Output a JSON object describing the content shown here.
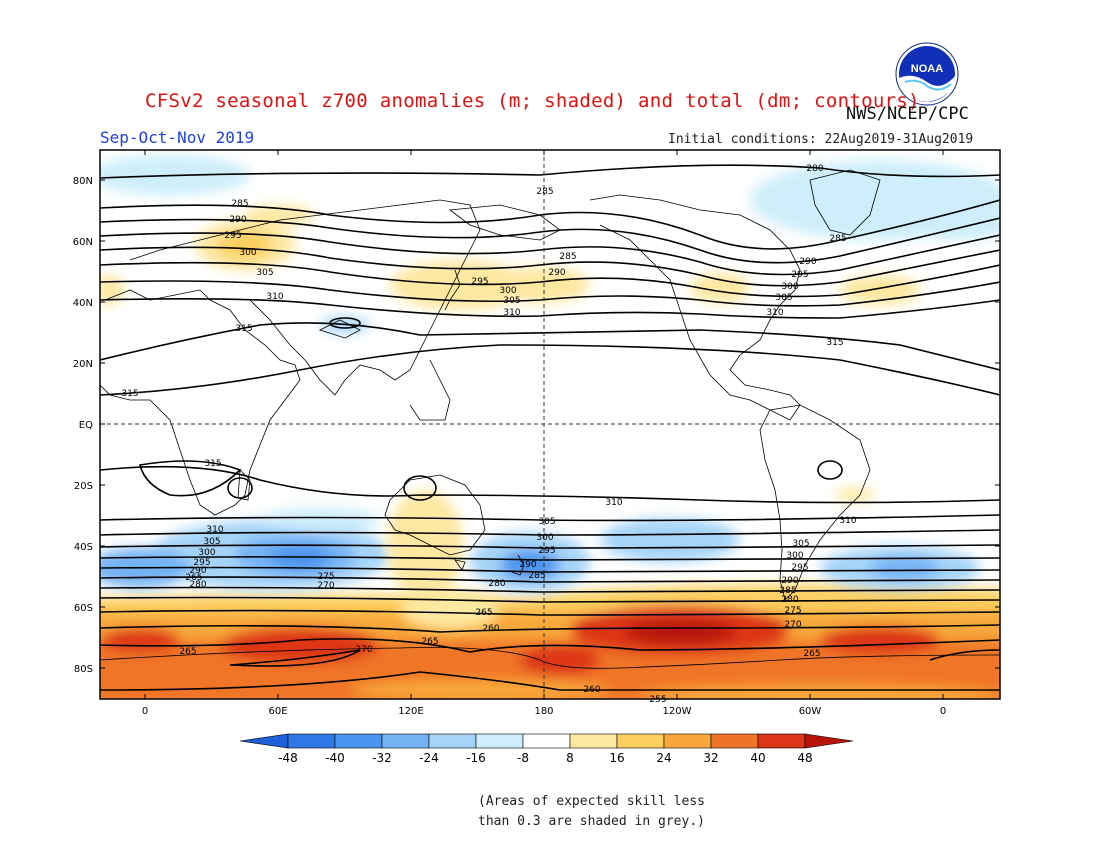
{
  "title": "CFSv2 seasonal z700 anomalies (m; shaded) and total (dm; contours)",
  "agency": "NWS/NCEP/CPC",
  "season": "Sep-Oct-Nov 2019",
  "initial_conditions": "Initial conditions: 22Aug2019-31Aug2019",
  "logo_text": "NOAA",
  "lat_labels": [
    "80N",
    "60N",
    "40N",
    "20N",
    "EQ",
    "20S",
    "40S",
    "60S",
    "80S"
  ],
  "lon_labels": [
    "0",
    "60E",
    "120E",
    "180",
    "120W",
    "60W",
    "0"
  ],
  "colorbar": {
    "ticks": [
      "-48",
      "-40",
      "-32",
      "-24",
      "-16",
      "-8",
      "8",
      "16",
      "24",
      "32",
      "40",
      "48"
    ],
    "colors": [
      "#1c5fd8",
      "#2f78e6",
      "#4b94ee",
      "#74b2f4",
      "#a5d4f8",
      "#cdeefa",
      "#ffffff",
      "#fde8a0",
      "#fcd060",
      "#f8a83a",
      "#f07428",
      "#dd3518",
      "#b81308"
    ]
  },
  "note": [
    "(Areas of expected skill less",
    "than 0.3 are shaded in grey.)"
  ],
  "contour_labels": {
    "north": [
      "280",
      "285",
      "290",
      "295",
      "300",
      "305",
      "310",
      "315"
    ],
    "south": [
      "310",
      "305",
      "300",
      "295",
      "290",
      "285",
      "280",
      "275",
      "270",
      "265",
      "260",
      "255"
    ]
  },
  "map_colors": {
    "land": "#000000",
    "contour": "#000000",
    "frame": "#000000",
    "dash": "#333333"
  }
}
